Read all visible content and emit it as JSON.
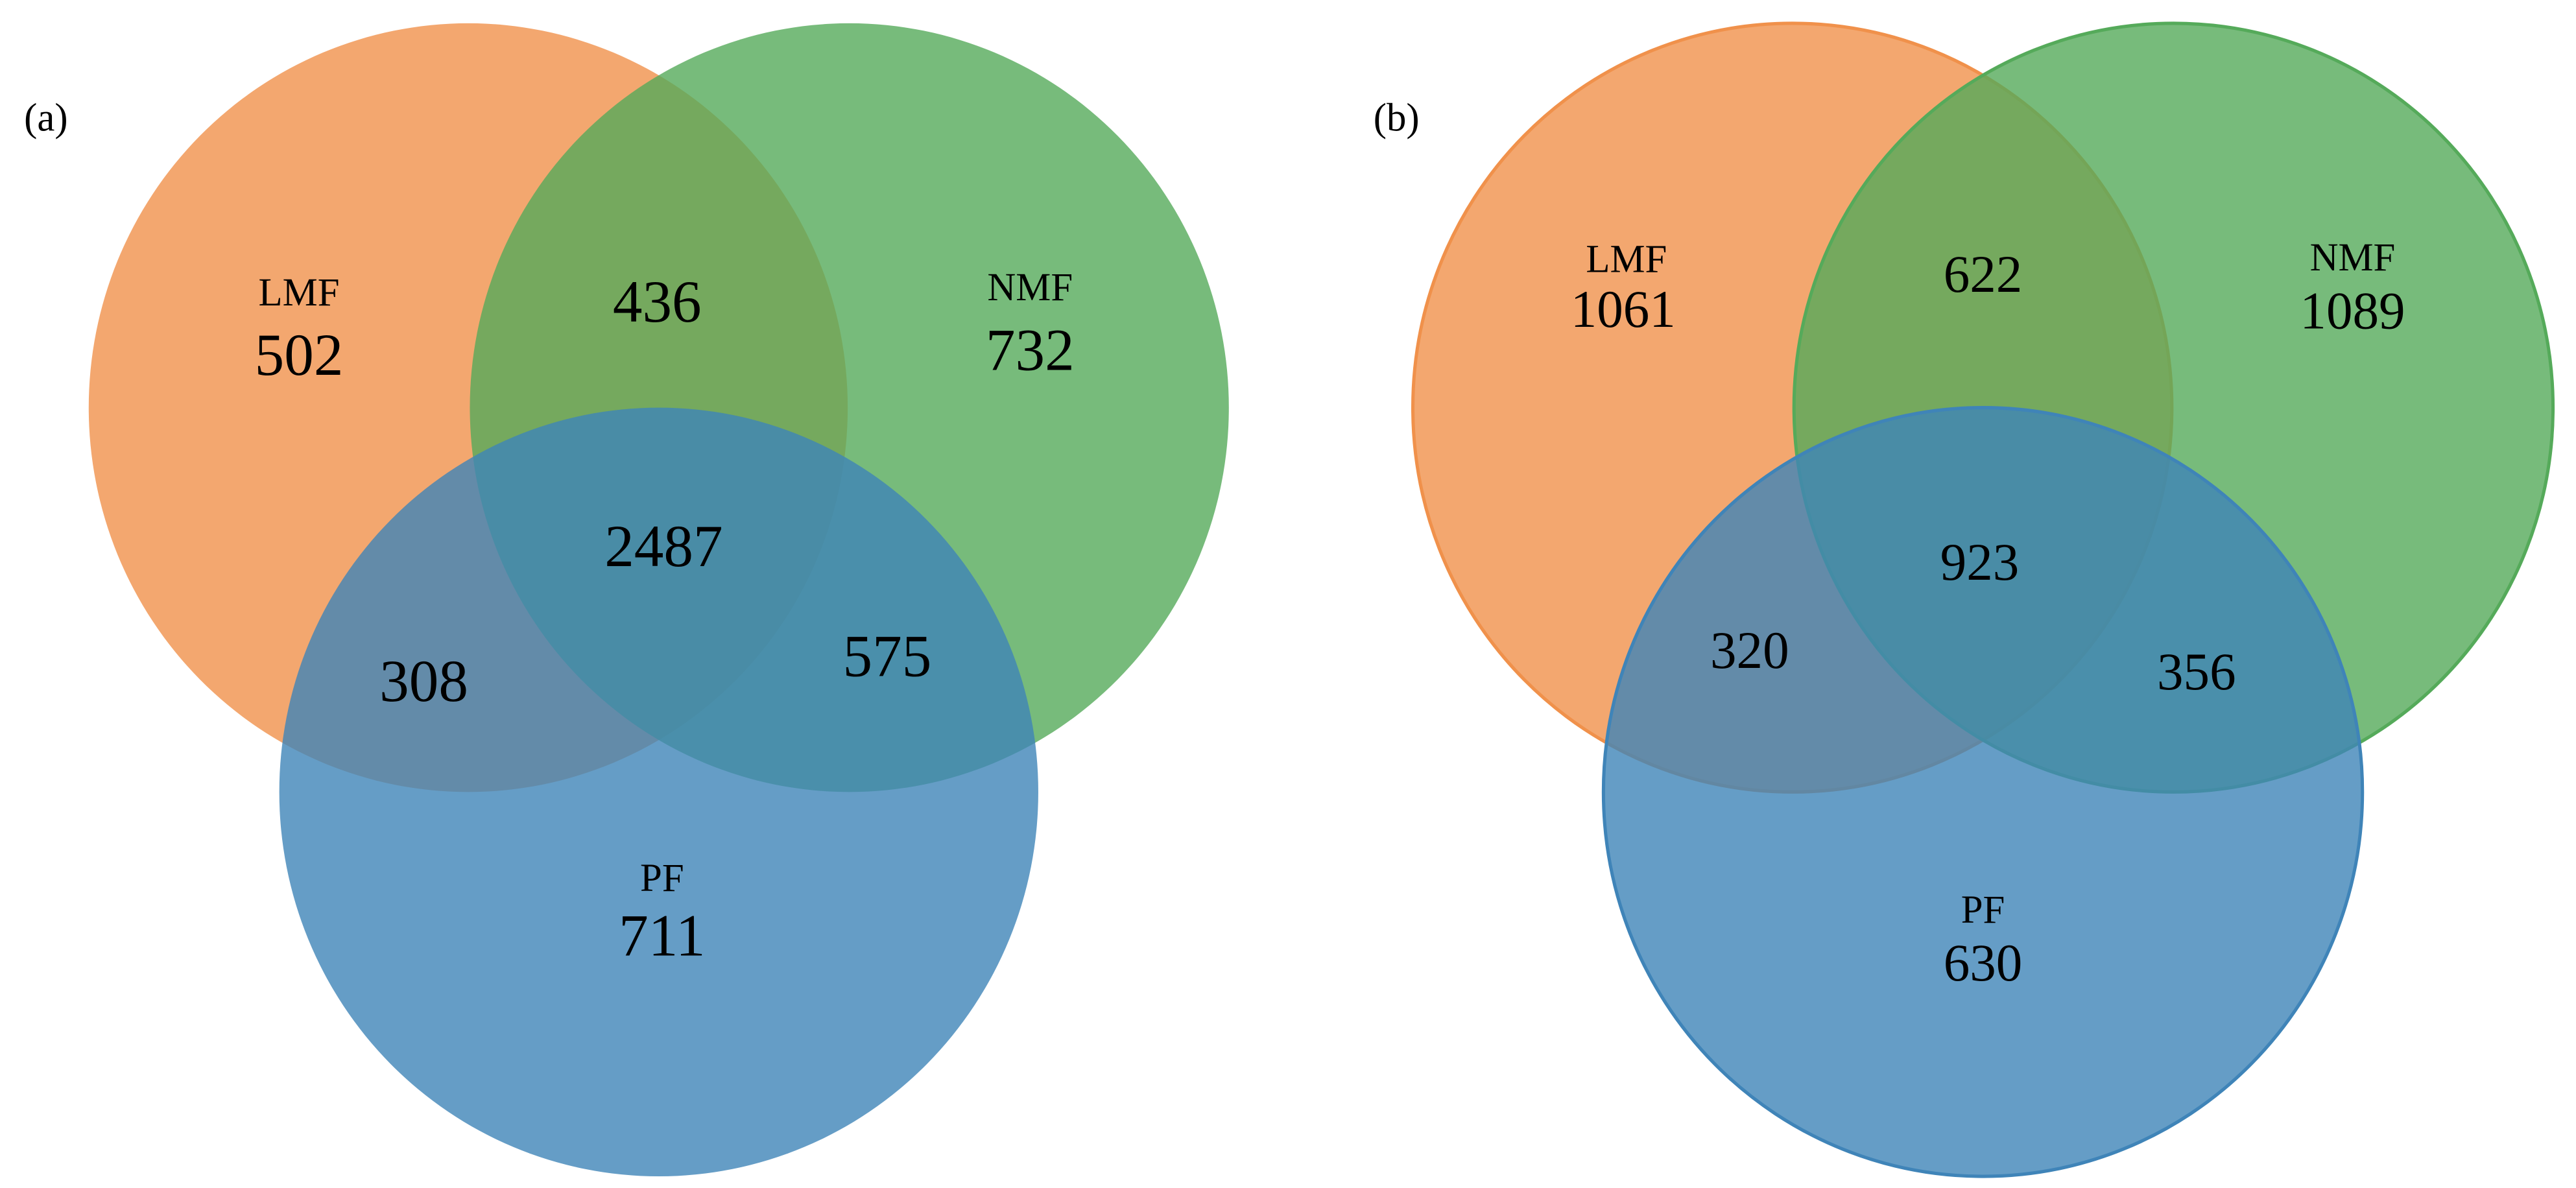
{
  "chart_data": [
    {
      "type": "venn",
      "panel_label": "(a)",
      "sets": [
        {
          "name": "LMF",
          "color": "#f0914b",
          "value": 502
        },
        {
          "name": "NMF",
          "color": "#55aa5a",
          "value": 732
        },
        {
          "name": "PF",
          "color": "#3f84b8",
          "value": 711
        }
      ],
      "intersections": [
        436,
        308,
        575,
        2487
      ]
    },
    {
      "type": "venn",
      "panel_label": "(b)",
      "sets": [
        {
          "name": "LMF",
          "color": "#f0914b",
          "value": 1061
        },
        {
          "name": "NMF",
          "color": "#55aa5a",
          "value": 1089
        },
        {
          "name": "PF",
          "color": "#3f84b8",
          "value": 630
        }
      ],
      "intersections": [
        622,
        320,
        356,
        923
      ]
    }
  ]
}
